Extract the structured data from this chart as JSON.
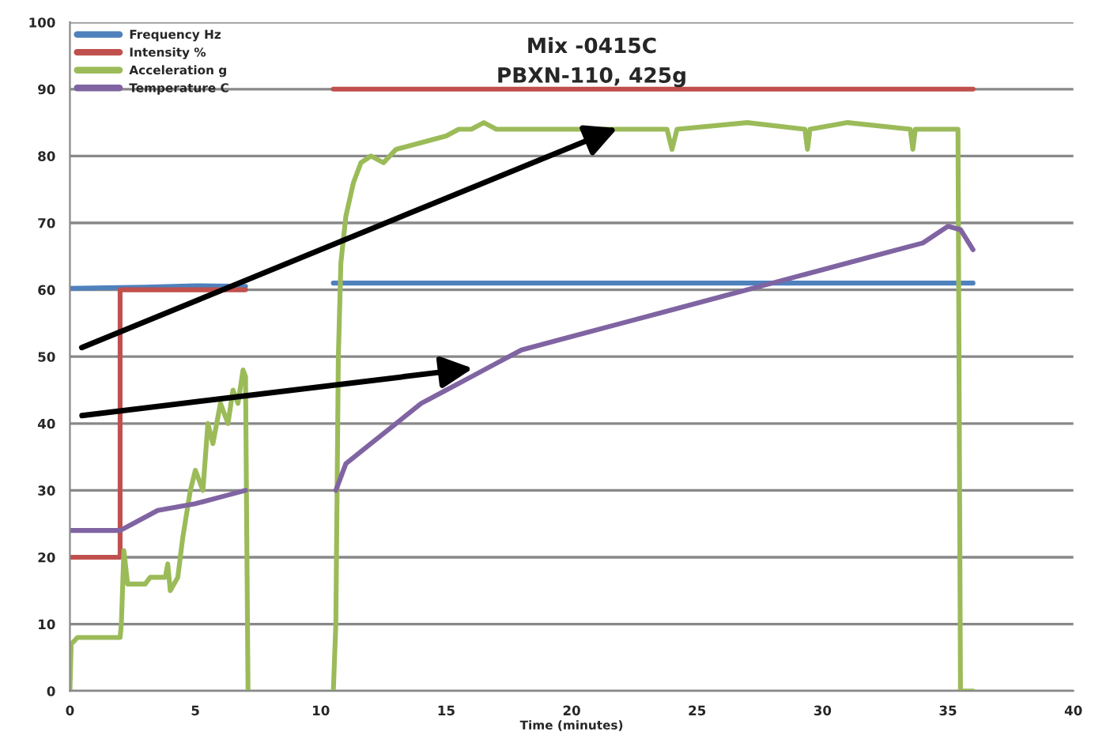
{
  "chart_data": {
    "type": "line",
    "title": "Mix -0415C\nPBXN-110, 425g",
    "xlabel": "Time (minutes)",
    "xlim": [
      0,
      40
    ],
    "xticks": [
      0,
      5,
      10,
      15,
      20,
      25,
      30,
      35,
      40
    ],
    "ylim": [
      0,
      100
    ],
    "yticks": [
      0,
      10,
      20,
      30,
      40,
      50,
      60,
      70,
      80,
      90,
      100
    ],
    "grid": "y",
    "legend": "top left",
    "marker": "none",
    "line_style": "solid",
    "series": [
      {
        "name": "Frequency Hz",
        "color": "#4f81bd",
        "x": [
          0,
          3,
          5,
          7,
          8,
          10.5,
          36
        ],
        "values": [
          60.2,
          60.4,
          60.6,
          60.5,
          null,
          61,
          61
        ]
      },
      {
        "name": "Intensity %",
        "color": "#c0504d",
        "x": [
          0,
          2,
          2,
          7,
          8,
          10.5,
          36
        ],
        "values": [
          20,
          20,
          60,
          60,
          null,
          90,
          90
        ]
      },
      {
        "name": "Acceleration g",
        "color": "#9bbb59",
        "x": [
          0,
          0.05,
          0.3,
          2,
          2.05,
          2.15,
          2.3,
          3,
          3.2,
          3.8,
          3.9,
          4.0,
          4.3,
          4.5,
          4.8,
          5.0,
          5.3,
          5.5,
          5.7,
          6.0,
          6.3,
          6.5,
          6.7,
          6.9,
          7.0,
          7.05,
          7.1,
          8,
          10.5,
          10.6,
          10.7,
          10.8,
          11,
          11.3,
          11.6,
          12,
          12.5,
          13,
          14,
          15,
          15.5,
          16,
          16.5,
          17,
          20,
          23.8,
          24,
          24.2,
          27,
          29.3,
          29.4,
          29.5,
          31,
          33.5,
          33.6,
          33.7,
          35.4,
          35.5,
          36
        ],
        "values": [
          0,
          7,
          8,
          8,
          10,
          21,
          16,
          16,
          17,
          17,
          19,
          15,
          17,
          23,
          30,
          33,
          30,
          40,
          37,
          43,
          40,
          45,
          43,
          48,
          47,
          23,
          0,
          null,
          0,
          10,
          50,
          64,
          71,
          76,
          79,
          80,
          79,
          81,
          82,
          83,
          84,
          84,
          85,
          84,
          84,
          84,
          81,
          84,
          85,
          84,
          81,
          84,
          85,
          84,
          81,
          84,
          84,
          0,
          0
        ]
      },
      {
        "name": "Temperature C",
        "color": "#8064a2",
        "x": [
          0,
          2,
          2.5,
          3.5,
          5,
          6,
          7,
          8,
          10.6,
          11,
          12,
          13,
          14,
          15,
          16,
          17,
          18,
          20,
          22,
          24,
          26,
          28,
          30,
          32,
          34,
          35,
          35.5,
          36
        ],
        "values": [
          24,
          24,
          25,
          27,
          28,
          29,
          30,
          null,
          30,
          34,
          37,
          40,
          43,
          45,
          47,
          49,
          51,
          53,
          55,
          57,
          59,
          61,
          63,
          65,
          67,
          69.5,
          69,
          66
        ]
      }
    ]
  }
}
